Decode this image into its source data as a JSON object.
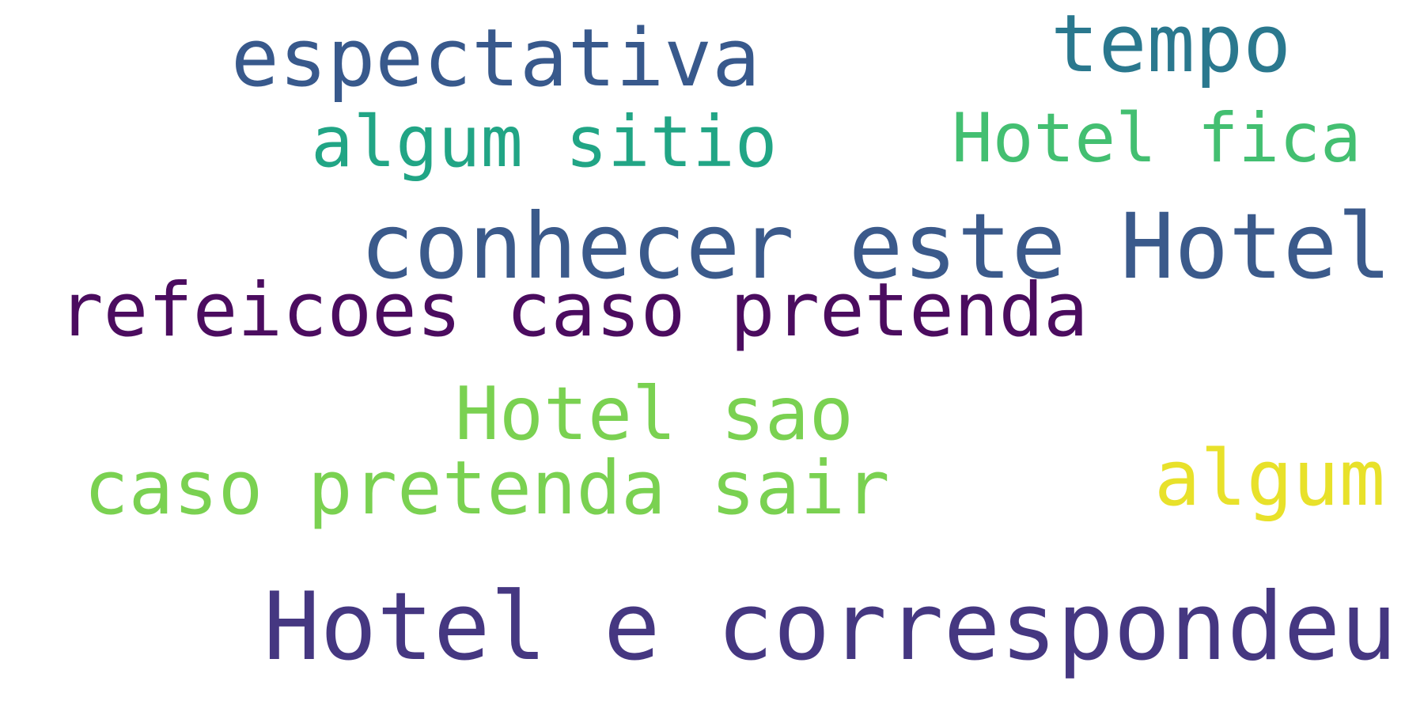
{
  "word_cloud": {
    "words": [
      {
        "text": "espectativa",
        "color": "#38598c"
      },
      {
        "text": "tempo",
        "color": "#2a788e"
      },
      {
        "text": "algum sitio",
        "color": "#21a585"
      },
      {
        "text": "Hotel fica",
        "color": "#43bf71"
      },
      {
        "text": "conhecer este Hotel",
        "color": "#3b5a8b"
      },
      {
        "text": "refeicoes caso pretenda",
        "color": "#4b0c5f"
      },
      {
        "text": "Hotel sao",
        "color": "#7ad151"
      },
      {
        "text": "caso pretenda sair",
        "color": "#7ad151"
      },
      {
        "text": "algum",
        "color": "#e8e12a"
      },
      {
        "text": "Hotel e correspondeu",
        "color": "#453781"
      }
    ]
  }
}
